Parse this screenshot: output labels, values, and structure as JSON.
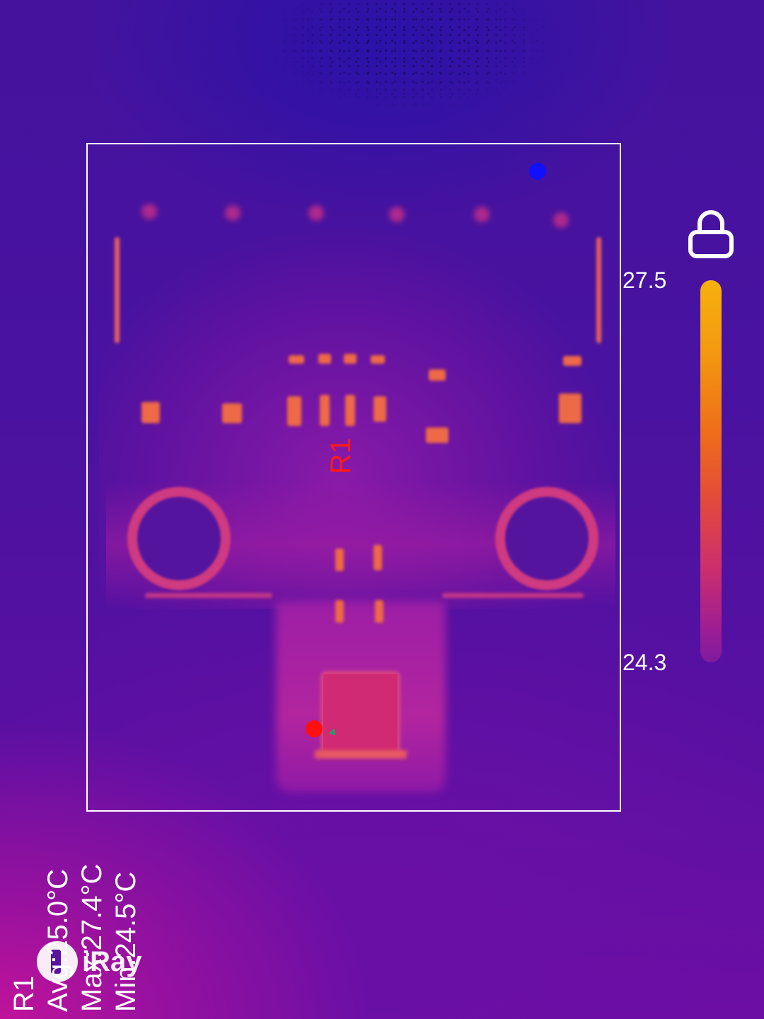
{
  "roi": {
    "label": "R1"
  },
  "scale": {
    "max_label": "27.5",
    "min_label": "24.3",
    "gradient_colors": [
      "#f6b00e",
      "#ee6d1a",
      "#cd2f6c",
      "#7f1aa0"
    ]
  },
  "stats": {
    "roi_name": "R1",
    "avg": "Avg:25.0°C",
    "max": "Max:27.4°C",
    "min": "Min:24.5°C"
  },
  "brand": {
    "name": "iRay"
  },
  "icons": {
    "lock": "lock-icon",
    "max_marker": "max-temperature-marker",
    "min_marker": "min-temperature-marker"
  },
  "colors": {
    "roi_border": "#ffffff",
    "roi_label": "#ff1a1a",
    "max_marker": "#ff1010",
    "min_marker": "#1010ff"
  }
}
